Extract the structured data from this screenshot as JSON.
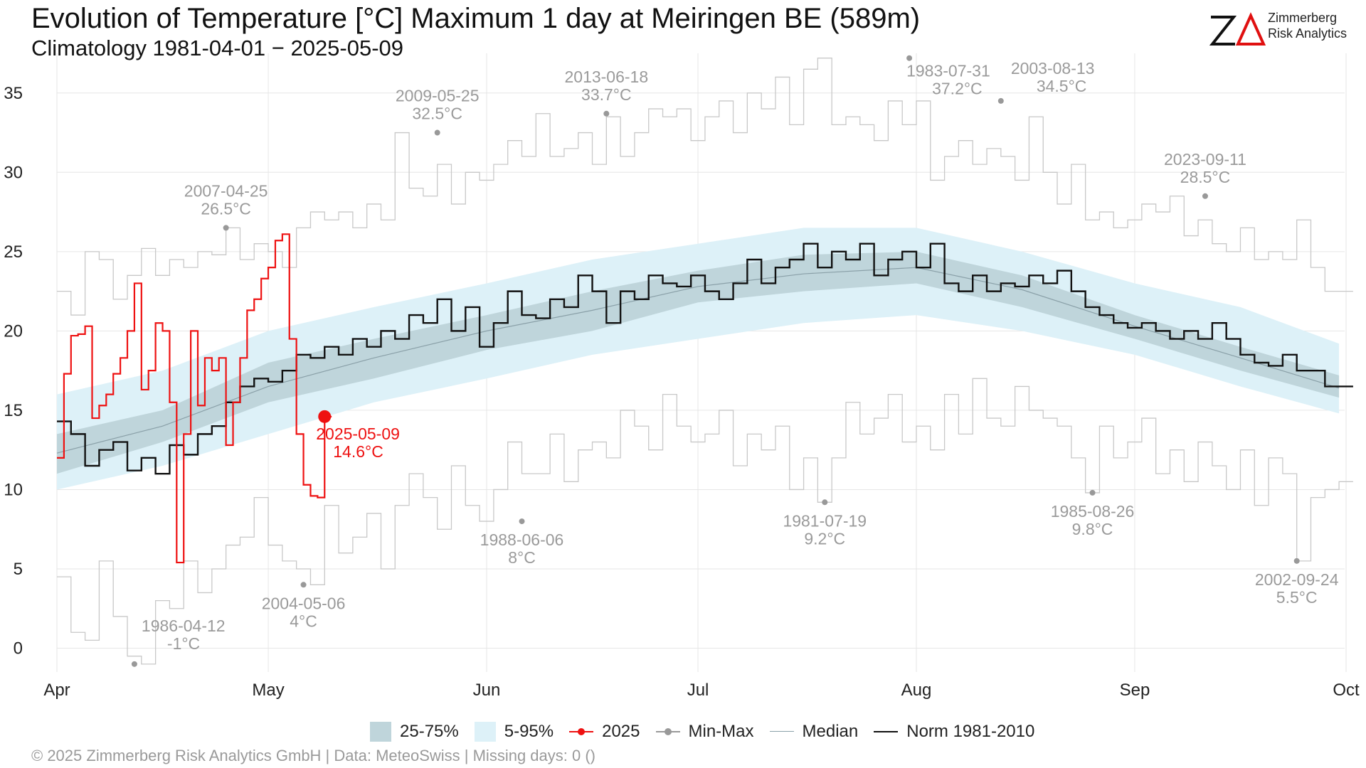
{
  "header": {
    "title": "Evolution of Temperature [°C] Maximum 1 day at Meiringen  BE (589m)",
    "subtitle": "Climatology 1981-04-01 − 2025-05-09"
  },
  "logo": {
    "mark": "ZΔ",
    "line1": "Zimmerberg",
    "line2": "Risk Analytics"
  },
  "footer": {
    "caption": "©  2025 Zimmerberg Risk Analytics GmbH | Data: MeteoSwiss | Missing days: 0 ()"
  },
  "legend": {
    "band_inner": "25-75%",
    "band_outer": "5-95%",
    "current_year": "2025",
    "minmax": "Min-Max",
    "median": "Median",
    "norm": "Norm 1981-2010"
  },
  "colors": {
    "band_inner": "#bfd5db",
    "band_outer": "#ddf1f8",
    "current_year": "#ee1111",
    "minmax": "#c8c8c8",
    "minmax_point": "#999999",
    "median": "#8aa0a8",
    "norm": "#111111",
    "grid": "#e6e6e6"
  },
  "chart_data": {
    "type": "line",
    "x_start": "04-01",
    "x_end": "09-30",
    "xlabel": "",
    "ylabel": "",
    "ylim": [
      -1.5,
      37.5
    ],
    "yticks": [
      0,
      5,
      10,
      15,
      20,
      25,
      30,
      35
    ],
    "month_ticks": [
      {
        "label": "Apr",
        "day": 0
      },
      {
        "label": "May",
        "day": 30
      },
      {
        "label": "Jun",
        "day": 61
      },
      {
        "label": "Jul",
        "day": 91
      },
      {
        "label": "Aug",
        "day": 122
      },
      {
        "label": "Sep",
        "day": 153
      },
      {
        "label": "Oct",
        "day": 183
      }
    ],
    "grid": true,
    "legend_position": "bottom",
    "band_5_95": {
      "days": [
        0,
        15,
        30,
        45,
        61,
        76,
        91,
        106,
        122,
        137,
        153,
        168,
        182
      ],
      "low": [
        10.0,
        11.5,
        13.5,
        15.5,
        17.0,
        18.5,
        19.5,
        20.5,
        21.0,
        20.0,
        18.5,
        16.5,
        14.8
      ],
      "high": [
        16.0,
        17.5,
        20.0,
        21.5,
        23.0,
        24.5,
        25.5,
        26.5,
        26.5,
        25.0,
        23.0,
        21.5,
        19.2
      ]
    },
    "band_25_75": {
      "days": [
        0,
        15,
        30,
        45,
        61,
        76,
        91,
        106,
        122,
        137,
        153,
        168,
        182
      ],
      "low": [
        11.0,
        13.0,
        15.5,
        17.0,
        18.8,
        20.0,
        21.8,
        22.5,
        23.0,
        21.5,
        19.5,
        17.5,
        15.8
      ],
      "high": [
        13.5,
        15.0,
        18.0,
        19.5,
        21.0,
        22.5,
        23.8,
        24.8,
        25.0,
        23.5,
        21.0,
        19.0,
        17.2
      ]
    },
    "median": {
      "days": [
        0,
        15,
        30,
        45,
        61,
        76,
        91,
        106,
        122,
        137,
        153,
        168,
        182
      ],
      "values": [
        12.3,
        14.0,
        16.5,
        18.3,
        20.0,
        21.3,
        22.8,
        23.6,
        24.0,
        22.6,
        20.3,
        18.3,
        16.4
      ]
    },
    "norm_1981_2010": {
      "days": [
        0,
        2,
        4,
        6,
        8,
        10,
        12,
        14,
        16,
        18,
        20,
        22,
        24,
        26,
        28,
        30,
        32,
        34,
        36,
        38,
        40,
        42,
        44,
        46,
        48,
        50,
        52,
        54,
        56,
        58,
        60,
        62,
        64,
        66,
        68,
        70,
        72,
        74,
        76,
        78,
        80,
        82,
        84,
        86,
        88,
        90,
        92,
        94,
        96,
        98,
        100,
        102,
        104,
        106,
        108,
        110,
        112,
        114,
        116,
        118,
        120,
        122,
        124,
        126,
        128,
        130,
        132,
        134,
        136,
        138,
        140,
        142,
        144,
        146,
        148,
        150,
        152,
        154,
        156,
        158,
        160,
        162,
        164,
        166,
        168,
        170,
        172,
        174,
        176,
        178,
        180,
        182
      ],
      "values": [
        14.3,
        13.5,
        11.5,
        12.5,
        13.0,
        11.2,
        12.0,
        11.0,
        12.8,
        12.2,
        13.5,
        14.0,
        15.5,
        16.5,
        17.0,
        16.8,
        17.5,
        18.5,
        18.3,
        19.0,
        18.5,
        19.5,
        19.0,
        20.0,
        19.5,
        21.0,
        20.5,
        22.0,
        20.0,
        21.5,
        19.0,
        20.5,
        22.5,
        21.0,
        20.8,
        22.0,
        21.5,
        23.5,
        22.5,
        20.5,
        22.5,
        22.0,
        23.5,
        23.0,
        22.8,
        23.5,
        22.5,
        22.0,
        23.0,
        24.5,
        23.0,
        24.0,
        24.5,
        25.5,
        24.0,
        25.0,
        24.5,
        25.5,
        23.5,
        24.5,
        25.0,
        24.0,
        25.5,
        23.0,
        22.5,
        23.5,
        22.5,
        23.0,
        22.8,
        23.5,
        23.0,
        23.8,
        22.5,
        21.5,
        21.0,
        20.5,
        20.2,
        20.5,
        20.0,
        19.5,
        20.0,
        19.5,
        20.5,
        19.5,
        18.5,
        18.0,
        17.8,
        18.5,
        17.5,
        17.5,
        16.5,
        16.5
      ]
    },
    "min": {
      "days": [
        0,
        2,
        4,
        6,
        8,
        10,
        12,
        14,
        16,
        18,
        20,
        22,
        24,
        26,
        28,
        30,
        32,
        34,
        36,
        38,
        40,
        42,
        44,
        46,
        48,
        50,
        52,
        54,
        56,
        58,
        60,
        62,
        64,
        66,
        68,
        70,
        72,
        74,
        76,
        78,
        80,
        82,
        84,
        86,
        88,
        90,
        92,
        94,
        96,
        98,
        100,
        102,
        104,
        106,
        108,
        110,
        112,
        114,
        116,
        118,
        120,
        122,
        124,
        126,
        128,
        130,
        132,
        134,
        136,
        138,
        140,
        142,
        144,
        146,
        148,
        150,
        152,
        154,
        156,
        158,
        160,
        162,
        164,
        166,
        168,
        170,
        172,
        174,
        176,
        178,
        180,
        182
      ],
      "values": [
        4.5,
        1.0,
        0.5,
        5.5,
        2.0,
        -0.5,
        -1.0,
        3.0,
        2.5,
        5.5,
        3.5,
        5.0,
        6.5,
        7.0,
        9.5,
        6.5,
        5.5,
        5.0,
        4.0,
        9.0,
        6.0,
        7.0,
        8.5,
        5.0,
        9.0,
        11.0,
        9.5,
        7.5,
        11.5,
        9.0,
        8.0,
        10.0,
        13.0,
        11.0,
        11.0,
        13.5,
        10.5,
        12.5,
        13.0,
        12.0,
        15.0,
        14.0,
        12.5,
        16.0,
        14.0,
        13.0,
        13.5,
        15.0,
        11.5,
        13.5,
        12.5,
        14.0,
        10.0,
        12.0,
        9.2,
        12.0,
        15.5,
        13.5,
        14.5,
        16.0,
        13.0,
        14.0,
        12.5,
        16.0,
        13.5,
        17.0,
        14.5,
        14.0,
        16.5,
        15.0,
        14.5,
        14.0,
        12.0,
        9.8,
        14.0,
        12.0,
        13.0,
        14.5,
        11.0,
        12.5,
        10.5,
        13.0,
        11.5,
        10.0,
        12.5,
        9.0,
        12.0,
        11.0,
        5.5,
        9.5,
        10.0,
        10.5
      ]
    },
    "max": {
      "days": [
        0,
        2,
        4,
        6,
        8,
        10,
        12,
        14,
        16,
        18,
        20,
        22,
        24,
        26,
        28,
        30,
        32,
        34,
        36,
        38,
        40,
        42,
        44,
        46,
        48,
        50,
        52,
        54,
        56,
        58,
        60,
        62,
        64,
        66,
        68,
        70,
        72,
        74,
        76,
        78,
        80,
        82,
        84,
        86,
        88,
        90,
        92,
        94,
        96,
        98,
        100,
        102,
        104,
        106,
        108,
        110,
        112,
        114,
        116,
        118,
        120,
        122,
        124,
        126,
        128,
        130,
        132,
        134,
        136,
        138,
        140,
        142,
        144,
        146,
        148,
        150,
        152,
        154,
        156,
        158,
        160,
        162,
        164,
        166,
        168,
        170,
        172,
        174,
        176,
        178,
        180,
        182
      ],
      "values": [
        22.5,
        21.0,
        25.0,
        24.5,
        22.0,
        23.5,
        25.2,
        23.5,
        24.5,
        24.0,
        25.0,
        24.8,
        26.5,
        24.5,
        25.5,
        25.0,
        24.0,
        26.5,
        27.5,
        27.0,
        27.5,
        26.5,
        28.0,
        27.0,
        32.5,
        29.0,
        28.5,
        30.5,
        28.0,
        30.0,
        29.5,
        30.5,
        32.0,
        31.0,
        33.7,
        31.0,
        31.5,
        32.5,
        30.5,
        33.5,
        31.0,
        32.5,
        34.0,
        33.5,
        34.0,
        32.0,
        33.5,
        34.5,
        32.5,
        35.0,
        34.0,
        36.0,
        33.0,
        36.5,
        37.2,
        33.0,
        33.5,
        33.0,
        32.0,
        34.5,
        33.0,
        34.5,
        29.5,
        31.0,
        32.0,
        30.5,
        31.5,
        31.0,
        29.5,
        33.5,
        30.0,
        28.0,
        30.5,
        27.0,
        27.5,
        26.5,
        27.0,
        28.0,
        27.5,
        28.5,
        26.0,
        27.0,
        25.5,
        25.0,
        26.5,
        24.5,
        25.0,
        24.5,
        27.0,
        24.0,
        22.5,
        22.5
      ]
    },
    "year_2025": {
      "days": [
        0,
        1,
        2,
        3,
        4,
        5,
        6,
        7,
        8,
        9,
        10,
        11,
        12,
        13,
        14,
        15,
        16,
        17,
        18,
        19,
        20,
        21,
        22,
        23,
        24,
        25,
        26,
        27,
        28,
        29,
        30,
        31,
        32,
        33,
        34,
        35,
        36,
        37,
        38
      ],
      "values": [
        12.0,
        17.3,
        19.7,
        19.8,
        20.3,
        14.5,
        15.3,
        16.0,
        17.3,
        18.3,
        20.0,
        23.0,
        16.3,
        17.5,
        20.5,
        20.0,
        15.5,
        5.4,
        13.5,
        20.0,
        15.3,
        18.3,
        17.5,
        18.3,
        12.8,
        15.5,
        18.3,
        21.3,
        22.0,
        23.3,
        24.0,
        25.7,
        26.1,
        19.5,
        13.5,
        10.3,
        9.6,
        9.5,
        14.6
      ]
    },
    "current_point": {
      "day": 38,
      "value": 14.6,
      "date": "2025-05-09",
      "label": "14.6°C"
    },
    "records": [
      {
        "date": "2007-04-25",
        "value": "26.5°C",
        "day": 24,
        "y": 26.5,
        "kind": "max",
        "pos": "above"
      },
      {
        "date": "2009-05-25",
        "value": "32.5°C",
        "day": 54,
        "y": 32.5,
        "kind": "max",
        "pos": "above"
      },
      {
        "date": "2013-06-18",
        "value": "33.7°C",
        "day": 78,
        "y": 33.7,
        "kind": "max",
        "pos": "above"
      },
      {
        "date": "1983-07-31",
        "value": "37.2°C",
        "day": 121,
        "y": 37.2,
        "kind": "max",
        "pos": "below-right"
      },
      {
        "date": "2003-08-13",
        "value": "34.5°C",
        "day": 134,
        "y": 34.5,
        "kind": "max",
        "pos": "above-right"
      },
      {
        "date": "2023-09-11",
        "value": "28.5°C",
        "day": 163,
        "y": 28.5,
        "kind": "max",
        "pos": "above"
      },
      {
        "date": "1986-04-12",
        "value": "-1°C",
        "day": 11,
        "y": -1.0,
        "kind": "min",
        "pos": "above-right"
      },
      {
        "date": "2004-05-06",
        "value": "4°C",
        "day": 35,
        "y": 4.0,
        "kind": "min",
        "pos": "below"
      },
      {
        "date": "1988-06-06",
        "value": "8°C",
        "day": 66,
        "y": 8.0,
        "kind": "min",
        "pos": "below"
      },
      {
        "date": "1981-07-19",
        "value": "9.2°C",
        "day": 109,
        "y": 9.2,
        "kind": "min",
        "pos": "below"
      },
      {
        "date": "1985-08-26",
        "value": "9.8°C",
        "day": 147,
        "y": 9.8,
        "kind": "min",
        "pos": "below"
      },
      {
        "date": "2002-09-24",
        "value": "5.5°C",
        "day": 176,
        "y": 5.5,
        "kind": "min",
        "pos": "below"
      }
    ]
  }
}
